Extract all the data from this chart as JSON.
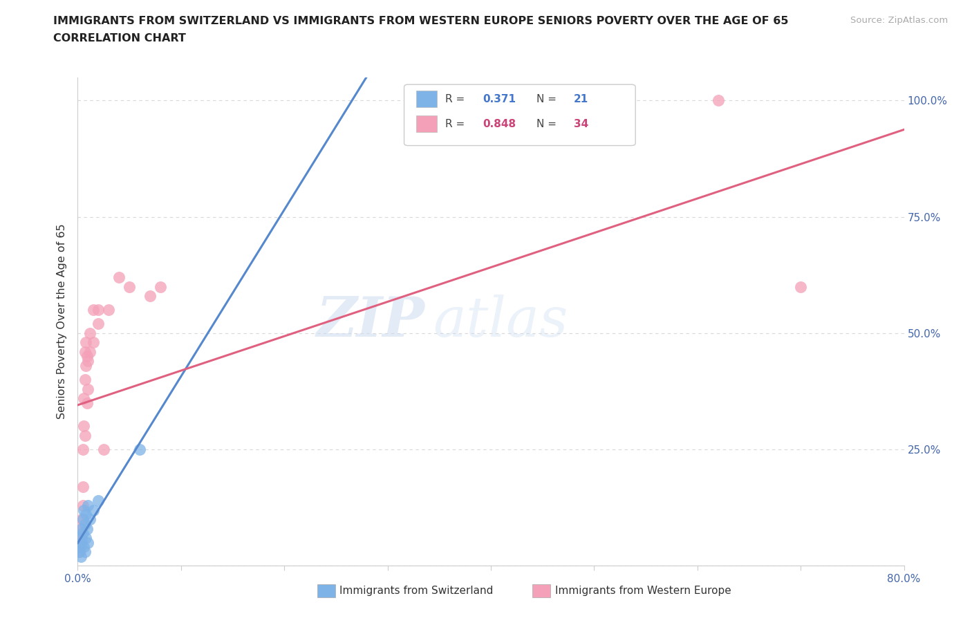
{
  "title_line1": "IMMIGRANTS FROM SWITZERLAND VS IMMIGRANTS FROM WESTERN EUROPE SENIORS POVERTY OVER THE AGE OF 65",
  "title_line2": "CORRELATION CHART",
  "source_text": "Source: ZipAtlas.com",
  "ylabel": "Seniors Poverty Over the Age of 65",
  "xlim": [
    0,
    0.8
  ],
  "ylim": [
    0,
    1.05
  ],
  "x_ticks": [
    0.0,
    0.1,
    0.2,
    0.3,
    0.4,
    0.5,
    0.6,
    0.7,
    0.8
  ],
  "x_tick_labels": [
    "0.0%",
    "",
    "",
    "",
    "",
    "",
    "",
    "",
    "80.0%"
  ],
  "y_ticks": [
    0.0,
    0.25,
    0.5,
    0.75,
    1.0
  ],
  "y_tick_labels_right": [
    "",
    "25.0%",
    "50.0%",
    "75.0%",
    "100.0%"
  ],
  "background_color": "#ffffff",
  "grid_color": "#d8d8d8",
  "watermark_zip": "ZIP",
  "watermark_atlas": "atlas",
  "swiss_color": "#7eb3e8",
  "swiss_edge_color": "#5590cc",
  "western_color": "#f4a0b8",
  "western_edge_color": "#e07090",
  "swiss_line_color": "#5588cc",
  "western_line_color": "#e06080",
  "swiss_line_style": "solid",
  "swiss_dashed_color": "#88aadd",
  "swiss_scatter": [
    [
      0.002,
      0.04
    ],
    [
      0.002,
      0.03
    ],
    [
      0.003,
      0.06
    ],
    [
      0.003,
      0.02
    ],
    [
      0.004,
      0.05
    ],
    [
      0.004,
      0.08
    ],
    [
      0.005,
      0.1
    ],
    [
      0.005,
      0.07
    ],
    [
      0.006,
      0.12
    ],
    [
      0.006,
      0.04
    ],
    [
      0.007,
      0.09
    ],
    [
      0.007,
      0.03
    ],
    [
      0.008,
      0.11
    ],
    [
      0.008,
      0.06
    ],
    [
      0.009,
      0.08
    ],
    [
      0.01,
      0.13
    ],
    [
      0.01,
      0.05
    ],
    [
      0.012,
      0.1
    ],
    [
      0.015,
      0.12
    ],
    [
      0.02,
      0.14
    ],
    [
      0.06,
      0.25
    ]
  ],
  "western_scatter": [
    [
      0.002,
      0.03
    ],
    [
      0.002,
      0.05
    ],
    [
      0.003,
      0.04
    ],
    [
      0.003,
      0.08
    ],
    [
      0.004,
      0.06
    ],
    [
      0.004,
      0.1
    ],
    [
      0.005,
      0.13
    ],
    [
      0.005,
      0.17
    ],
    [
      0.005,
      0.25
    ],
    [
      0.006,
      0.3
    ],
    [
      0.006,
      0.36
    ],
    [
      0.007,
      0.28
    ],
    [
      0.007,
      0.4
    ],
    [
      0.007,
      0.46
    ],
    [
      0.008,
      0.43
    ],
    [
      0.008,
      0.48
    ],
    [
      0.009,
      0.35
    ],
    [
      0.009,
      0.45
    ],
    [
      0.01,
      0.38
    ],
    [
      0.01,
      0.44
    ],
    [
      0.012,
      0.46
    ],
    [
      0.012,
      0.5
    ],
    [
      0.015,
      0.55
    ],
    [
      0.015,
      0.48
    ],
    [
      0.02,
      0.52
    ],
    [
      0.02,
      0.55
    ],
    [
      0.025,
      0.25
    ],
    [
      0.03,
      0.55
    ],
    [
      0.04,
      0.62
    ],
    [
      0.05,
      0.6
    ],
    [
      0.07,
      0.58
    ],
    [
      0.08,
      0.6
    ],
    [
      0.62,
      1.0
    ],
    [
      0.7,
      0.6
    ]
  ],
  "legend_r1_label": "R = ",
  "legend_r1_val": "0.371",
  "legend_n1_label": "N = ",
  "legend_n1_val": "21",
  "legend_r2_label": "R = ",
  "legend_r2_val": "0.848",
  "legend_n2_label": "N = ",
  "legend_n2_val": "34",
  "legend_val_color_swiss": "#4477cc",
  "legend_val_color_western": "#cc4477",
  "legend_label_color": "#444444"
}
